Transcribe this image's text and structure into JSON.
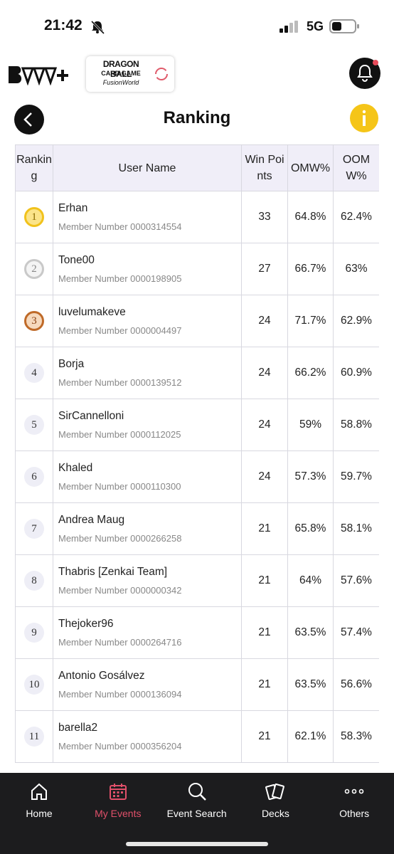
{
  "status_bar": {
    "time": "21:42",
    "network": "5G"
  },
  "header": {
    "game_logo": [
      "DRAGON BALL",
      "CARD GAME",
      "FusionWorld"
    ]
  },
  "title": "Ranking",
  "table": {
    "columns": [
      "Ranking",
      "User Name",
      "Win Points",
      "OMW%",
      "OOMW%"
    ],
    "rows": [
      [
        "1",
        "Erhan",
        "Member Number 0000314554",
        "33",
        "64.8%",
        "62.4%"
      ],
      [
        "2",
        "Tone00",
        "Member Number 0000198905",
        "27",
        "66.7%",
        "63%"
      ],
      [
        "3",
        "luvelumakeve",
        "Member Number 0000004497",
        "24",
        "71.7%",
        "62.9%"
      ],
      [
        "4",
        "Borja",
        "Member Number 0000139512",
        "24",
        "66.2%",
        "60.9%"
      ],
      [
        "5",
        "SirCannelloni",
        "Member Number 0000112025",
        "24",
        "59%",
        "58.8%"
      ],
      [
        "6",
        "Khaled",
        "Member Number 0000110300",
        "24",
        "57.3%",
        "59.7%"
      ],
      [
        "7",
        "Andrea Maug",
        "Member Number 0000266258",
        "21",
        "65.8%",
        "58.1%"
      ],
      [
        "8",
        "Thabris [Zenkai Team]",
        "Member Number 0000000342",
        "21",
        "64%",
        "57.6%"
      ],
      [
        "9",
        "Thejoker96",
        "Member Number 0000264716",
        "21",
        "63.5%",
        "57.4%"
      ],
      [
        "10",
        "Antonio Gosálvez",
        "Member Number 0000136094",
        "21",
        "63.5%",
        "56.6%"
      ],
      [
        "11",
        "barella2",
        "Member Number 0000356204",
        "21",
        "62.1%",
        "58.3%"
      ]
    ]
  },
  "nav": [
    {
      "label": "Home",
      "active": false
    },
    {
      "label": "My Events",
      "active": true
    },
    {
      "label": "Event Search",
      "active": false
    },
    {
      "label": "Decks",
      "active": false
    },
    {
      "label": "Others",
      "active": false
    }
  ]
}
